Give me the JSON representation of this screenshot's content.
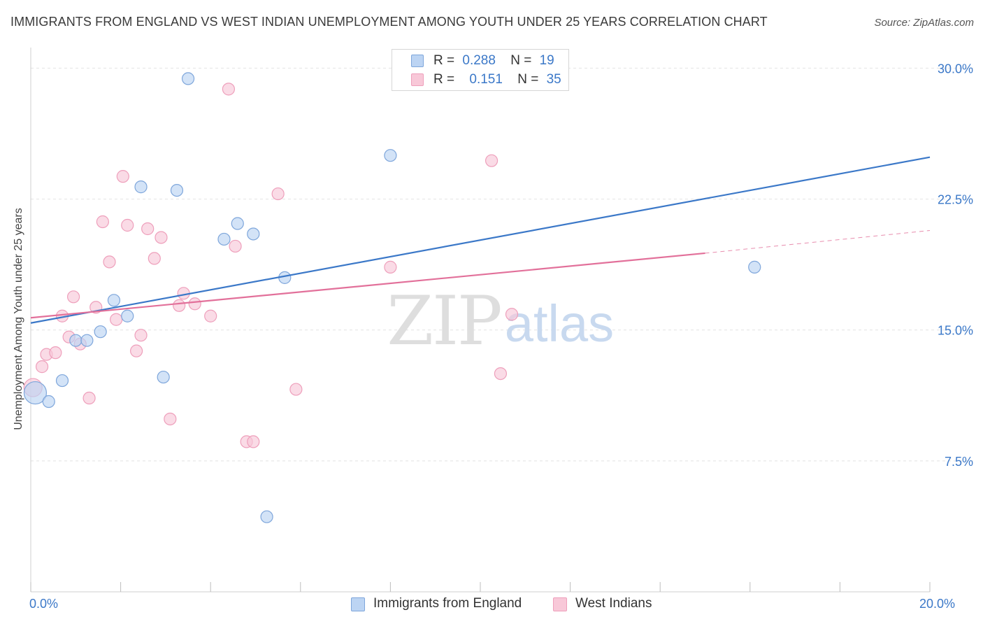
{
  "title": "IMMIGRANTS FROM ENGLAND VS WEST INDIAN UNEMPLOYMENT AMONG YOUTH UNDER 25 YEARS CORRELATION CHART",
  "source": "Source: ZipAtlas.com",
  "watermark": {
    "zip": "ZIP",
    "atlas": "atlas"
  },
  "colors": {
    "blue": "#3b78c8",
    "blue_fill": "#bcd4f3",
    "blue_edge": "#7ea6db",
    "pink": "#e2709a",
    "pink_fill": "#f8c8d8",
    "pink_edge": "#ee9fbb",
    "axis_text": "#3b78c8",
    "grid": "#e2e2e2"
  },
  "legend_top": {
    "rows": [
      {
        "r_label": "R =",
        "r_value": "0.288",
        "n_label": "N =",
        "n_value": "19"
      },
      {
        "r_label": "R =",
        "r_value": "0.151",
        "n_label": "N =",
        "n_value": "35"
      }
    ]
  },
  "legend_bottom": {
    "items": [
      {
        "label": "Immigrants from England"
      },
      {
        "label": "West Indians"
      }
    ]
  },
  "chart_data": {
    "type": "scatter",
    "title": "IMMIGRANTS FROM ENGLAND VS WEST INDIAN UNEMPLOYMENT AMONG YOUTH UNDER 25 YEARS CORRELATION CHART",
    "xlabel": "",
    "ylabel": "Unemployment Among Youth under 25 years",
    "xlim": [
      0,
      20
    ],
    "ylim": [
      0,
      31.5
    ],
    "x_ticks": [
      0,
      2,
      4,
      6,
      8,
      10,
      12,
      14,
      16,
      18,
      20
    ],
    "x_tick_labels": [
      {
        "value": 0,
        "label": "0.0%"
      },
      {
        "value": 20,
        "label": "20.0%"
      }
    ],
    "y_ticks": [
      {
        "value": 7.5,
        "label": "7.5%"
      },
      {
        "value": 15,
        "label": "15.0%"
      },
      {
        "value": 22.5,
        "label": "22.5%"
      },
      {
        "value": 30,
        "label": "30.0%"
      }
    ],
    "grid": true,
    "legend_position": "bottom",
    "series": [
      {
        "name": "Immigrants from England",
        "color": "#3b78c8",
        "points": [
          {
            "x": 0.1,
            "y": 11.4,
            "big": true
          },
          {
            "x": 0.4,
            "y": 10.9
          },
          {
            "x": 0.7,
            "y": 12.1
          },
          {
            "x": 1.0,
            "y": 14.4
          },
          {
            "x": 1.25,
            "y": 14.4
          },
          {
            "x": 1.55,
            "y": 14.9
          },
          {
            "x": 1.85,
            "y": 16.7
          },
          {
            "x": 2.15,
            "y": 15.8
          },
          {
            "x": 2.45,
            "y": 23.2
          },
          {
            "x": 2.95,
            "y": 12.3
          },
          {
            "x": 3.25,
            "y": 23.0
          },
          {
            "x": 3.5,
            "y": 29.4
          },
          {
            "x": 4.3,
            "y": 20.2
          },
          {
            "x": 4.6,
            "y": 21.1
          },
          {
            "x": 4.95,
            "y": 20.5
          },
          {
            "x": 5.25,
            "y": 4.3
          },
          {
            "x": 5.65,
            "y": 18.0
          },
          {
            "x": 8.0,
            "y": 25.0
          },
          {
            "x": 16.1,
            "y": 18.6
          }
        ],
        "trend": {
          "x0": 0,
          "y0": 15.4,
          "x1": 20,
          "y1": 24.9
        }
      },
      {
        "name": "West Indians",
        "color": "#e2709a",
        "points": [
          {
            "x": 0.05,
            "y": 11.7,
            "big": true
          },
          {
            "x": 0.25,
            "y": 12.9
          },
          {
            "x": 0.35,
            "y": 13.6
          },
          {
            "x": 0.55,
            "y": 13.7
          },
          {
            "x": 0.7,
            "y": 15.8
          },
          {
            "x": 0.85,
            "y": 14.6
          },
          {
            "x": 0.95,
            "y": 16.9
          },
          {
            "x": 1.1,
            "y": 14.2
          },
          {
            "x": 1.3,
            "y": 11.1
          },
          {
            "x": 1.45,
            "y": 16.3
          },
          {
            "x": 1.6,
            "y": 21.2
          },
          {
            "x": 1.75,
            "y": 18.9
          },
          {
            "x": 1.9,
            "y": 15.6
          },
          {
            "x": 2.05,
            "y": 23.8
          },
          {
            "x": 2.15,
            "y": 21.0
          },
          {
            "x": 2.35,
            "y": 13.8
          },
          {
            "x": 2.45,
            "y": 14.7
          },
          {
            "x": 2.6,
            "y": 20.8
          },
          {
            "x": 2.75,
            "y": 19.1
          },
          {
            "x": 2.9,
            "y": 20.3
          },
          {
            "x": 3.1,
            "y": 9.9
          },
          {
            "x": 3.3,
            "y": 16.4
          },
          {
            "x": 3.4,
            "y": 17.1
          },
          {
            "x": 3.65,
            "y": 16.5
          },
          {
            "x": 4.0,
            "y": 15.8
          },
          {
            "x": 4.4,
            "y": 28.8
          },
          {
            "x": 4.55,
            "y": 19.8
          },
          {
            "x": 4.8,
            "y": 8.6
          },
          {
            "x": 4.95,
            "y": 8.6
          },
          {
            "x": 5.5,
            "y": 22.8
          },
          {
            "x": 5.9,
            "y": 11.6
          },
          {
            "x": 8.0,
            "y": 18.6
          },
          {
            "x": 10.25,
            "y": 24.7
          },
          {
            "x": 10.45,
            "y": 12.5
          },
          {
            "x": 10.7,
            "y": 15.9
          }
        ],
        "trend": {
          "x0": 0,
          "y0": 15.7,
          "x1": 15.0,
          "y1": 19.4
        },
        "trend_dashed": {
          "x0": 15.0,
          "y0": 19.4,
          "x1": 20,
          "y1": 20.7
        }
      }
    ]
  }
}
